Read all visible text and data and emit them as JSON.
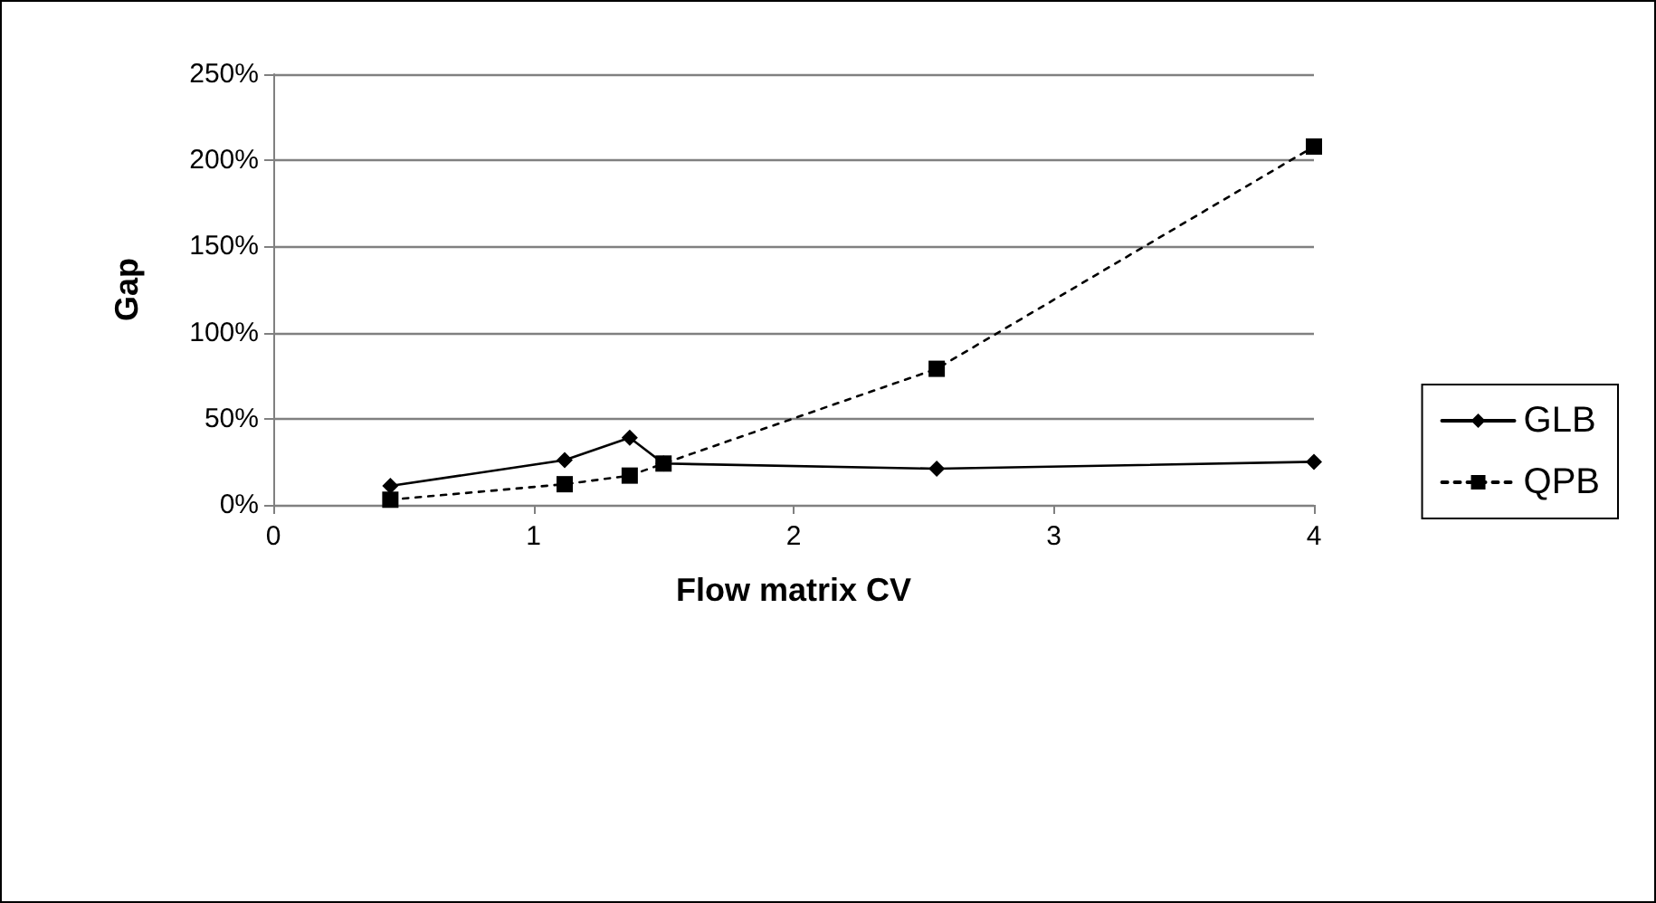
{
  "chart_data": {
    "type": "line",
    "xlabel": "Flow matrix CV",
    "ylabel": "Gap",
    "xlim": [
      0,
      4
    ],
    "xticks": [
      0,
      1,
      2,
      3,
      4
    ],
    "ylim": [
      0,
      250
    ],
    "yticks": [
      {
        "value": 0,
        "label": "0%"
      },
      {
        "value": 50,
        "label": "50%"
      },
      {
        "value": 100,
        "label": "100%"
      },
      {
        "value": 150,
        "label": "150%"
      },
      {
        "value": 200,
        "label": "200%"
      },
      {
        "value": 250,
        "label": "250%"
      }
    ],
    "grid": "y",
    "legend": "right",
    "series": [
      {
        "name": "GLB",
        "color": "#000000",
        "marker": "diamond",
        "line_style": "solid",
        "x": [
          0.45,
          1.12,
          1.37,
          1.5,
          2.55,
          4
        ],
        "values": [
          11,
          26,
          39,
          24,
          21,
          25
        ]
      },
      {
        "name": "QPB",
        "color": "#000000",
        "marker": "square",
        "line_style": "dotted",
        "x": [
          0.45,
          1.12,
          1.37,
          1.5,
          2.55,
          4
        ],
        "values": [
          3,
          12,
          17,
          24,
          79,
          208
        ]
      }
    ]
  }
}
